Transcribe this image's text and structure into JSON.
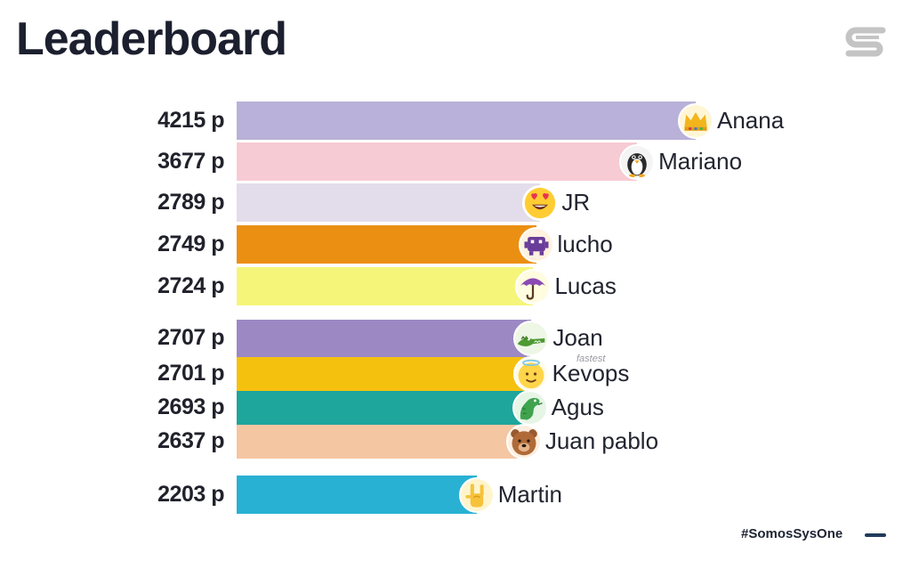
{
  "header": {
    "title": "Leaderboard"
  },
  "footer": {
    "hashtag": "#SomosSysOne"
  },
  "badge": {
    "fastest": "fastest"
  },
  "chart_data": {
    "type": "bar",
    "orientation": "horizontal",
    "title": "Leaderboard",
    "unit_suffix": " p",
    "categories": [
      "Anana",
      "Mariano",
      "JR",
      "lucho",
      "Lucas",
      "Joan",
      "Kevops",
      "Agus",
      "Juan pablo",
      "Martin"
    ],
    "values": [
      4215,
      3677,
      2789,
      2749,
      2724,
      2707,
      2701,
      2693,
      2637,
      2203
    ],
    "value_labels": [
      "4215 p",
      "3677 p",
      "2789 p",
      "2749 p",
      "2724 p",
      "2707 p",
      "2701 p",
      "2693 p",
      "2637 p",
      "2203 p"
    ],
    "colors": [
      "#b9b1d9",
      "#f7cbd4",
      "#e3dcea",
      "#eb8f12",
      "#f5f57a",
      "#9c89c4",
      "#f5c10f",
      "#1ea59c",
      "#f5c6a2",
      "#29b1d3"
    ],
    "avatar_icons": [
      "crown-icon",
      "penguin-icon",
      "heart-eyes-icon",
      "space-invader-icon",
      "umbrella-icon",
      "crocodile-icon",
      "angel-icon",
      "dragon-icon",
      "bear-icon",
      "rock-hand-icon"
    ],
    "grid": false,
    "legend": "none"
  }
}
